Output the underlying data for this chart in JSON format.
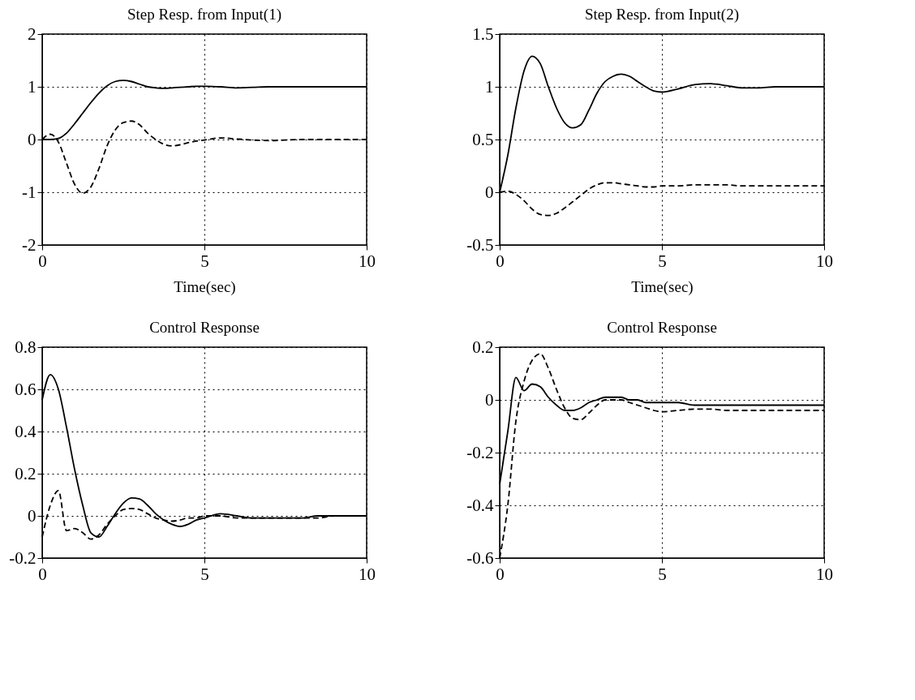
{
  "chart_data": [
    {
      "type": "line",
      "title": "Step Resp. from Input(1)",
      "xlabel": "Time(sec)",
      "xlim": [
        0,
        10
      ],
      "xticks": [
        0,
        5,
        10
      ],
      "ylim": [
        -2,
        2
      ],
      "yticks": [
        -2,
        -1,
        0,
        1,
        2
      ],
      "grid": true,
      "x": [
        0,
        0.25,
        0.5,
        0.75,
        1,
        1.25,
        1.5,
        1.75,
        2,
        2.25,
        2.5,
        2.75,
        3,
        3.25,
        3.5,
        3.75,
        4,
        4.25,
        4.5,
        4.75,
        5,
        5.5,
        6,
        6.5,
        7,
        7.5,
        8,
        8.5,
        9,
        9.5,
        10
      ],
      "series": [
        {
          "color": "#000000",
          "line_style": "solid",
          "values": [
            0,
            0,
            0.02,
            0.12,
            0.3,
            0.5,
            0.7,
            0.88,
            1.02,
            1.1,
            1.12,
            1.1,
            1.05,
            1.0,
            0.98,
            0.97,
            0.98,
            0.99,
            1.0,
            1.01,
            1.01,
            1.0,
            0.98,
            0.99,
            1.0,
            1.0,
            1.0,
            1.0,
            1.0,
            1.0,
            1.0
          ]
        },
        {
          "color": "#000000",
          "line_style": "dashed",
          "values": [
            0,
            0.1,
            -0.05,
            -0.45,
            -0.85,
            -1.02,
            -0.9,
            -0.55,
            -0.12,
            0.18,
            0.32,
            0.35,
            0.28,
            0.12,
            0.0,
            -0.09,
            -0.12,
            -0.1,
            -0.06,
            -0.03,
            -0.01,
            0.03,
            0.01,
            -0.01,
            -0.02,
            -0.01,
            0,
            0,
            0,
            0,
            0
          ]
        }
      ]
    },
    {
      "type": "line",
      "title": "Step Resp. from Input(2)",
      "xlabel": "Time(sec)",
      "xlim": [
        0,
        10
      ],
      "xticks": [
        0,
        5,
        10
      ],
      "ylim": [
        -0.5,
        1.5
      ],
      "yticks": [
        -0.5,
        0,
        0.5,
        1,
        1.5
      ],
      "grid": true,
      "x": [
        0,
        0.25,
        0.5,
        0.75,
        1,
        1.25,
        1.5,
        1.75,
        2,
        2.25,
        2.5,
        2.75,
        3,
        3.25,
        3.5,
        3.75,
        4,
        4.25,
        4.5,
        4.75,
        5,
        5.5,
        6,
        6.5,
        7,
        7.5,
        8,
        8.5,
        9,
        9.5,
        10
      ],
      "series": [
        {
          "color": "#000000",
          "line_style": "solid",
          "values": [
            0,
            0.35,
            0.8,
            1.15,
            1.29,
            1.22,
            1.0,
            0.8,
            0.66,
            0.61,
            0.64,
            0.78,
            0.94,
            1.05,
            1.1,
            1.12,
            1.1,
            1.05,
            1.0,
            0.96,
            0.95,
            0.98,
            1.02,
            1.03,
            1.01,
            0.99,
            0.99,
            1.0,
            1.0,
            1.0,
            1.0
          ]
        },
        {
          "color": "#000000",
          "line_style": "dashed",
          "values": [
            0,
            0.01,
            -0.02,
            -0.08,
            -0.16,
            -0.21,
            -0.22,
            -0.2,
            -0.15,
            -0.09,
            -0.03,
            0.03,
            0.07,
            0.09,
            0.09,
            0.08,
            0.07,
            0.06,
            0.05,
            0.05,
            0.06,
            0.06,
            0.07,
            0.07,
            0.07,
            0.06,
            0.06,
            0.06,
            0.06,
            0.06,
            0.06
          ]
        }
      ]
    },
    {
      "type": "line",
      "title": "Control Response",
      "xlim": [
        0,
        10
      ],
      "xticks": [
        0,
        5,
        10
      ],
      "ylim": [
        -0.2,
        0.8
      ],
      "yticks": [
        -0.2,
        0,
        0.2,
        0.4,
        0.6,
        0.8
      ],
      "grid": true,
      "x": [
        0,
        0.25,
        0.5,
        0.75,
        1,
        1.25,
        1.5,
        1.75,
        2,
        2.25,
        2.5,
        2.75,
        3,
        3.25,
        3.5,
        3.75,
        4,
        4.25,
        4.5,
        4.75,
        5,
        5.5,
        6,
        6.5,
        7,
        7.5,
        8,
        8.5,
        9,
        9.5,
        10
      ],
      "series": [
        {
          "color": "#000000",
          "line_style": "solid",
          "values": [
            0.55,
            0.67,
            0.6,
            0.42,
            0.22,
            0.05,
            -0.08,
            -0.1,
            -0.05,
            0.01,
            0.06,
            0.085,
            0.08,
            0.05,
            0.01,
            -0.02,
            -0.04,
            -0.05,
            -0.04,
            -0.02,
            -0.01,
            0.01,
            0,
            -0.01,
            -0.01,
            -0.01,
            -0.01,
            0,
            0,
            0,
            0
          ]
        },
        {
          "color": "#000000",
          "line_style": "dashed",
          "values": [
            -0.1,
            0.05,
            0.12,
            -0.07,
            -0.06,
            -0.08,
            -0.11,
            -0.09,
            -0.04,
            0,
            0.03,
            0.035,
            0.03,
            0.01,
            -0.01,
            -0.02,
            -0.025,
            -0.02,
            -0.01,
            -0.01,
            0,
            0,
            -0.01,
            -0.01,
            -0.01,
            -0.01,
            -0.01,
            -0.01,
            0,
            0,
            0
          ]
        }
      ]
    },
    {
      "type": "line",
      "title": "Control Response",
      "xlim": [
        0,
        10
      ],
      "xticks": [
        0,
        5,
        10
      ],
      "ylim": [
        -0.6,
        0.2
      ],
      "yticks": [
        -0.6,
        -0.4,
        -0.2,
        0,
        0.2
      ],
      "grid": true,
      "x": [
        0,
        0.25,
        0.5,
        0.75,
        1,
        1.25,
        1.5,
        1.75,
        2,
        2.25,
        2.5,
        2.75,
        3,
        3.25,
        3.5,
        3.75,
        4,
        4.25,
        4.5,
        4.75,
        5,
        5.5,
        6,
        6.5,
        7,
        7.5,
        8,
        8.5,
        9,
        9.5,
        10
      ],
      "series": [
        {
          "color": "#000000",
          "line_style": "solid",
          "values": [
            -0.32,
            -0.12,
            0.085,
            0.035,
            0.06,
            0.05,
            0.01,
            -0.02,
            -0.04,
            -0.04,
            -0.03,
            -0.01,
            0,
            0.01,
            0.01,
            0.01,
            0,
            0,
            -0.01,
            -0.01,
            -0.01,
            -0.01,
            -0.02,
            -0.02,
            -0.02,
            -0.02,
            -0.02,
            -0.02,
            -0.02,
            -0.02,
            -0.02
          ]
        },
        {
          "color": "#000000",
          "line_style": "dashed",
          "values": [
            -0.6,
            -0.4,
            -0.08,
            0.07,
            0.15,
            0.175,
            0.12,
            0.04,
            -0.03,
            -0.07,
            -0.075,
            -0.05,
            -0.02,
            0,
            0,
            0,
            -0.01,
            -0.02,
            -0.03,
            -0.04,
            -0.045,
            -0.04,
            -0.035,
            -0.035,
            -0.04,
            -0.04,
            -0.04,
            -0.04,
            -0.04,
            -0.04,
            -0.04
          ]
        }
      ]
    }
  ]
}
